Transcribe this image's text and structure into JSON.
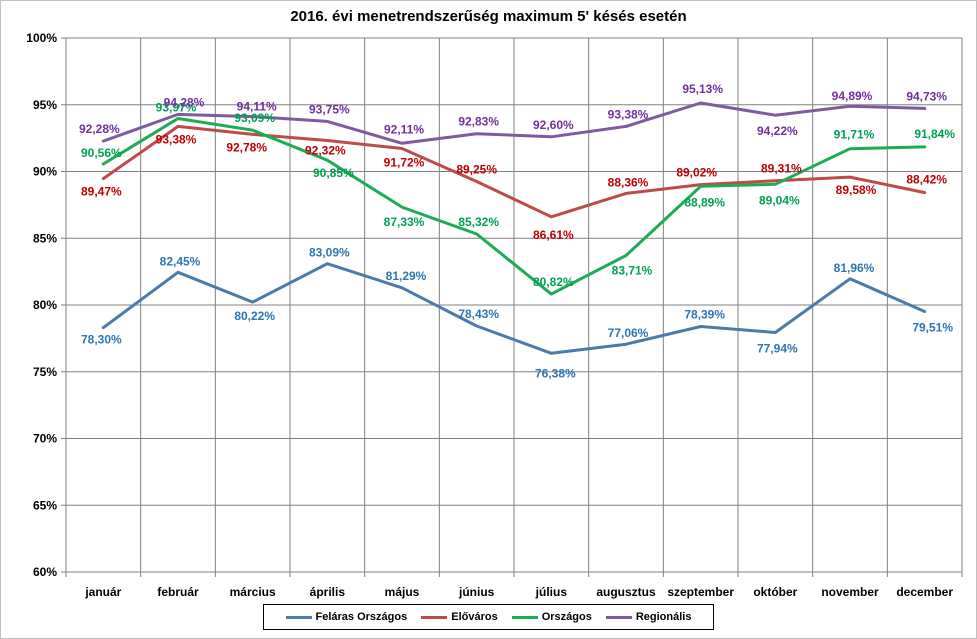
{
  "chart_data": {
    "type": "line",
    "title": "2016. évi menetrendszerűség maximum 5' késés esetén",
    "categories": [
      "január",
      "február",
      "március",
      "április",
      "május",
      "június",
      "július",
      "augusztus",
      "szeptember",
      "október",
      "november",
      "december"
    ],
    "ylim": [
      60,
      100
    ],
    "y_ticks": [
      60,
      65,
      70,
      75,
      80,
      85,
      90,
      95,
      100
    ],
    "y_tick_labels": [
      "60%",
      "65%",
      "70%",
      "75%",
      "80%",
      "85%",
      "90%",
      "95%",
      "100%"
    ],
    "grid": true,
    "legend_position": "bottom",
    "series": [
      {
        "name": "Feláras Országos",
        "color": "#4a7bab",
        "label_color": "#2e75b6",
        "values": [
          78.3,
          82.45,
          80.22,
          83.09,
          81.29,
          78.43,
          76.38,
          77.06,
          78.39,
          77.94,
          81.96,
          79.51
        ],
        "labels": [
          "78,30%",
          "82,45%",
          "80,22%",
          "83,09%",
          "81,29%",
          "78,43%",
          "76,38%",
          "77,06%",
          "78,39%",
          "77,94%",
          "81,96%",
          "79,51%"
        ]
      },
      {
        "name": "Előváros",
        "color": "#be4b48",
        "label_color": "#c00000",
        "values": [
          89.47,
          93.38,
          92.78,
          92.32,
          91.72,
          89.25,
          86.61,
          88.36,
          89.02,
          89.31,
          89.58,
          88.42
        ],
        "labels": [
          "89,47%",
          "93,38%",
          "92,78%",
          "92,32%",
          "91,72%",
          "89,25%",
          "86,61%",
          "88,36%",
          "89,02%",
          "89,31%",
          "89,58%",
          "88,42%"
        ]
      },
      {
        "name": "Országos",
        "color": "#1eab55",
        "label_color": "#00a050",
        "values": [
          90.56,
          93.97,
          93.09,
          90.85,
          87.33,
          85.32,
          80.82,
          83.71,
          88.89,
          89.04,
          91.71,
          91.84
        ],
        "labels": [
          "90,56%",
          "93,97%",
          "93,09%",
          "90,85%",
          "87,33%",
          "85,32%",
          "80,82%",
          "83,71%",
          "88,89%",
          "89,04%",
          "91,71%",
          "91,84%"
        ]
      },
      {
        "name": "Regionális",
        "color": "#7f5a9e",
        "label_color": "#7030a0",
        "values": [
          92.28,
          94.28,
          94.11,
          93.75,
          92.11,
          92.83,
          92.6,
          93.38,
          95.13,
          94.22,
          94.89,
          94.73
        ],
        "labels": [
          "92,28%",
          "94,28%",
          "94,11%",
          "93,75%",
          "92,11%",
          "92,83%",
          "92,60%",
          "93,38%",
          "95,13%",
          "94,22%",
          "94,89%",
          "94,73%"
        ]
      }
    ]
  }
}
